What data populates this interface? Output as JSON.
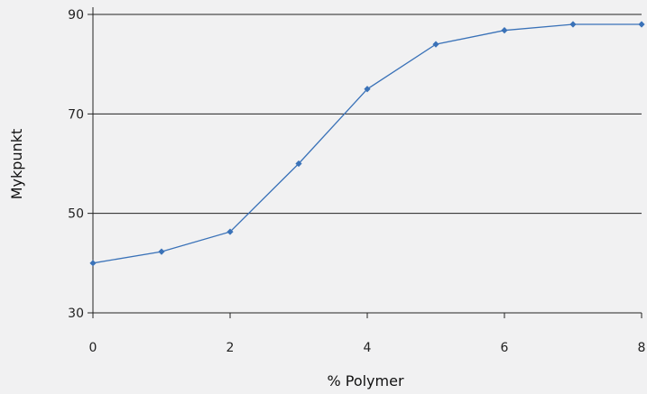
{
  "chart_data": {
    "type": "line",
    "title": "",
    "xlabel": "% Polymer",
    "ylabel": "Mykpunkt",
    "xlim": [
      0,
      8
    ],
    "ylim": [
      30,
      90
    ],
    "xticks": [
      "0",
      "2",
      "4",
      "6",
      "8"
    ],
    "yticks": [
      "30",
      "50",
      "70",
      "90"
    ],
    "grid": "horizontal",
    "legend": "none",
    "series": [
      {
        "x": [
          0,
          1,
          2,
          3,
          4,
          5,
          6,
          7,
          8
        ],
        "y": [
          40,
          42.3,
          46.3,
          60,
          75,
          84,
          86.8,
          88,
          88
        ],
        "color": "#3a72b8",
        "marker": "diamond"
      }
    ]
  }
}
